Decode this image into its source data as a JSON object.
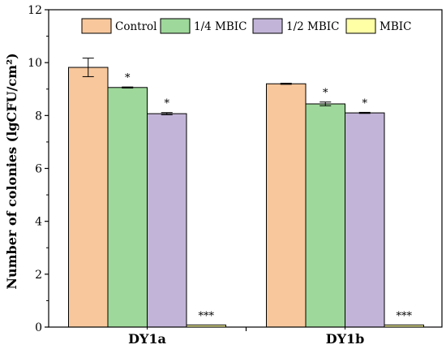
{
  "chart_data": {
    "type": "bar",
    "title": "",
    "xlabel": "",
    "ylabel": "Number of colonies (lgCFU/cm²)",
    "ylim": [
      0,
      12
    ],
    "yticks": [
      0,
      2,
      4,
      6,
      8,
      10,
      12
    ],
    "grid": false,
    "legend_position": "top",
    "categories": [
      "DY1a",
      "DY1b"
    ],
    "series": [
      {
        "name": "Control",
        "color": "#F8C79C",
        "values": [
          9.82,
          9.2
        ],
        "errors": [
          0.35,
          0.02
        ],
        "significance": [
          "",
          ""
        ]
      },
      {
        "name": "1/4 MBIC",
        "color": "#9ED89A",
        "values": [
          9.06,
          8.44
        ],
        "errors": [
          0.02,
          0.07
        ],
        "significance": [
          "*",
          "*"
        ]
      },
      {
        "name": "1/2 MBIC",
        "color": "#C2B4D8",
        "values": [
          8.07,
          8.1
        ],
        "errors": [
          0.04,
          0.02
        ],
        "significance": [
          "*",
          "*"
        ]
      },
      {
        "name": "MBIC",
        "color": "#FFFFA6",
        "values": [
          0.08,
          0.08
        ],
        "errors": [
          0,
          0
        ],
        "significance": [
          "***",
          "***"
        ]
      }
    ]
  }
}
